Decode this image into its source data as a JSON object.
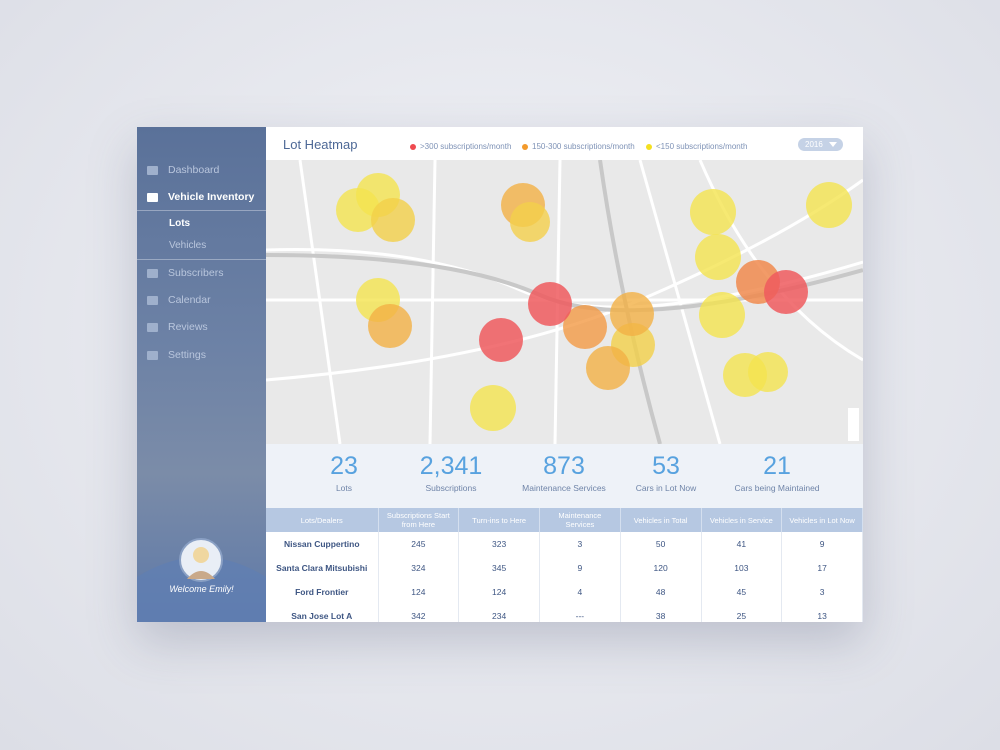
{
  "sidebar": {
    "nav": [
      "Dashboard",
      "Vehicle Inventory",
      "Subscribers",
      "Calendar",
      "Reviews",
      "Settings"
    ],
    "subnav": [
      "Lots",
      "Vehicles"
    ],
    "welcome": "Welcome Emily!"
  },
  "header": {
    "title": "Lot Heatmap",
    "legend": [
      ">300 subscriptions/month",
      "150-300 subscriptions/month",
      "<150 subscriptions/month"
    ],
    "year": "2016"
  },
  "stats": [
    {
      "value": "23",
      "label": "Lots"
    },
    {
      "value": "2,341",
      "label": "Subscriptions"
    },
    {
      "value": "873",
      "label": "Maintenance Services"
    },
    {
      "value": "53",
      "label": "Cars in Lot Now"
    },
    {
      "value": "21",
      "label": "Cars being Maintained"
    }
  ],
  "table": {
    "headers": [
      "Lots/Dealers",
      "Subscriptions Start from Here",
      "Turn-ins to Here",
      "Maintenance Services",
      "Vehicles in Total",
      "Vehicles in Service",
      "Vehicles in Lot Now"
    ],
    "rows": [
      [
        "Nissan Cuppertino",
        245,
        323,
        3,
        50,
        41,
        9
      ],
      [
        "Santa Clara Mitsubishi",
        324,
        345,
        9,
        120,
        103,
        17
      ],
      [
        "Ford Frontier",
        124,
        124,
        4,
        48,
        45,
        3
      ],
      [
        "San Jose Lot A",
        342,
        234,
        "---",
        38,
        25,
        13
      ]
    ]
  }
}
